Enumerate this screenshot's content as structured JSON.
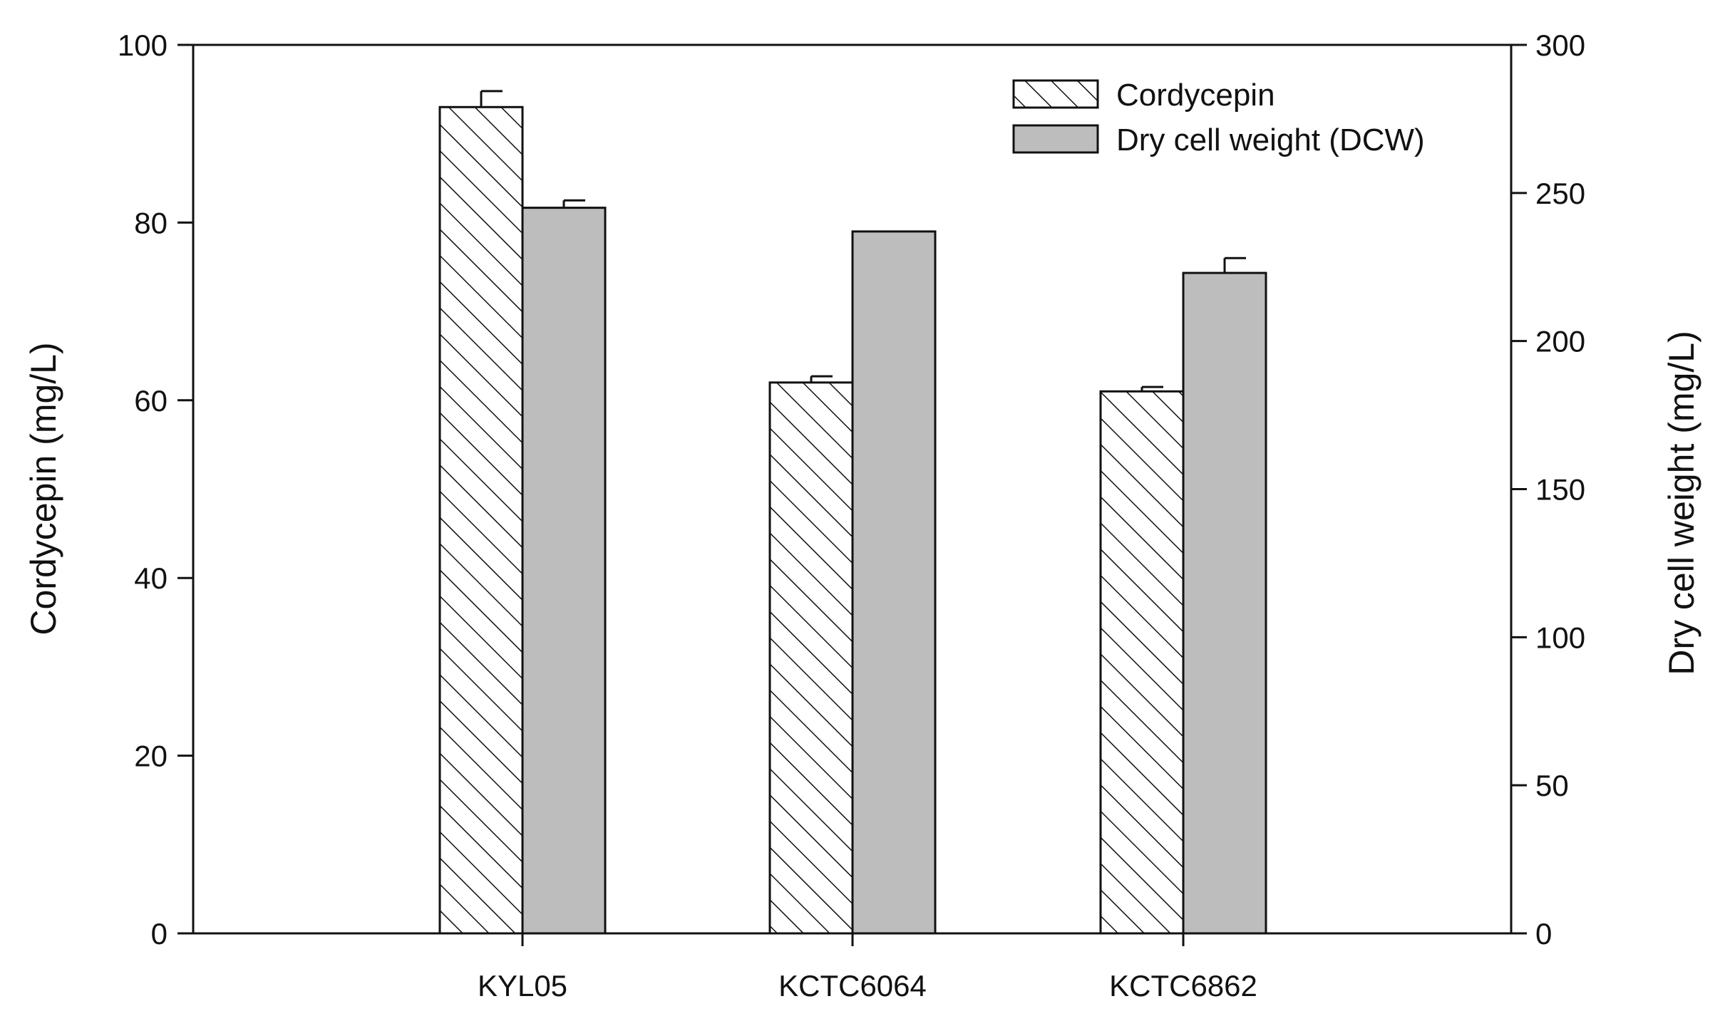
{
  "chart_data": {
    "type": "bar",
    "title": "",
    "categories": [
      "KYL05",
      "KCTC6064",
      "KCTC6862"
    ],
    "series": [
      {
        "name": "Cordycepin",
        "axis": "left",
        "values": [
          93,
          62,
          61
        ],
        "errors": [
          1.8,
          0.7,
          0.5
        ],
        "fill": "hatch"
      },
      {
        "name": "Dry cell weight (DCW)",
        "axis": "right",
        "values": [
          245,
          237,
          223
        ],
        "errors": [
          2.5,
          0,
          5
        ],
        "fill": "#bdbdbd"
      }
    ],
    "xlabel": "",
    "ylabel_left": "Cordycepin (mg/L)",
    "ylabel_right": "Dry cell weight (mg/L)",
    "ylim_left": [
      0,
      100
    ],
    "ylim_right": [
      0,
      300
    ],
    "yticks_left": [
      0,
      20,
      40,
      60,
      80,
      100
    ],
    "yticks_right": [
      0,
      50,
      100,
      150,
      200,
      250,
      300
    ],
    "legend_position": "top-right",
    "grid": false
  }
}
